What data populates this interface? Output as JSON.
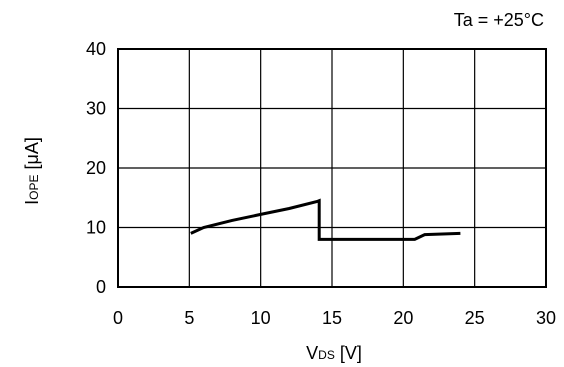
{
  "chart_data": {
    "type": "line",
    "annotation": "Ta = +25°C",
    "xlabel": {
      "main": "V",
      "sub": "DS",
      "unit": " [V]"
    },
    "ylabel": {
      "main": "I",
      "sub": "OPE",
      "unit": " [μA]"
    },
    "xlim": [
      0,
      30
    ],
    "ylim": [
      0,
      40
    ],
    "xticks": [
      "0",
      "5",
      "10",
      "15",
      "20",
      "25",
      "30"
    ],
    "yticks": [
      "0",
      "10",
      "20",
      "30",
      "40"
    ],
    "grid": true,
    "series": [
      {
        "x": [
          5.1,
          6.0,
          8.0,
          10.0,
          12.0,
          14.0,
          14.1,
          14.1,
          16.0,
          18.0,
          20.8,
          21.5,
          24.0
        ],
        "y": [
          9.0,
          10.0,
          11.2,
          12.2,
          13.2,
          14.4,
          14.5,
          8.0,
          8.0,
          8.0,
          8.0,
          8.8,
          9.0
        ]
      }
    ]
  }
}
